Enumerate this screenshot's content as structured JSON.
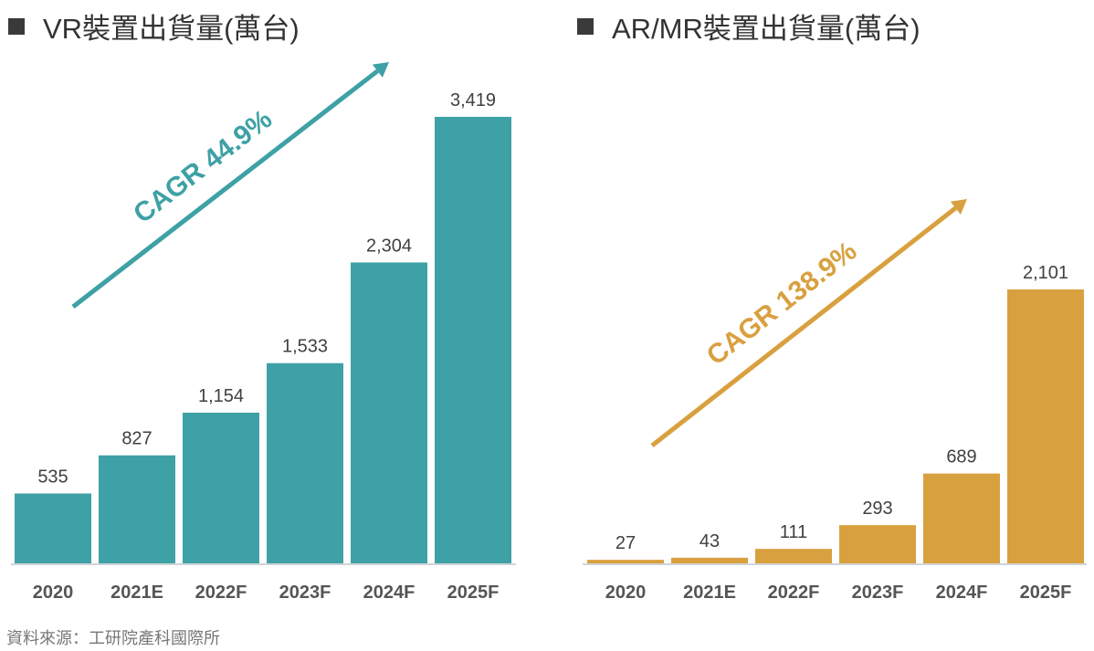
{
  "chart_data": [
    {
      "type": "bar",
      "title": "VR裝置出貨量(萬台)",
      "xlabel": "",
      "ylabel": "",
      "categories": [
        "2020",
        "2021E",
        "2022F",
        "2023F",
        "2024F",
        "2025F"
      ],
      "values": [
        535,
        827,
        1154,
        1533,
        2304,
        3419
      ],
      "value_labels": [
        "535",
        "827",
        "1,154",
        "1,533",
        "2,304",
        "3,419"
      ],
      "ylim": [
        0,
        3600
      ],
      "grid": false,
      "color": "#3ea1a5",
      "annotation": "CAGR 44.9%"
    },
    {
      "type": "bar",
      "title": "AR/MR裝置出貨量(萬台)",
      "xlabel": "",
      "ylabel": "",
      "categories": [
        "2020",
        "2021E",
        "2022F",
        "2023F",
        "2024F",
        "2025F"
      ],
      "values": [
        27,
        43,
        111,
        293,
        689,
        2101
      ],
      "value_labels": [
        "27",
        "43",
        "111",
        "293",
        "689",
        "2,101"
      ],
      "ylim": [
        0,
        3600
      ],
      "grid": false,
      "color": "#d9a03f",
      "annotation": "CAGR 138.9%"
    }
  ],
  "source": "資料來源：工研院產科國際所"
}
